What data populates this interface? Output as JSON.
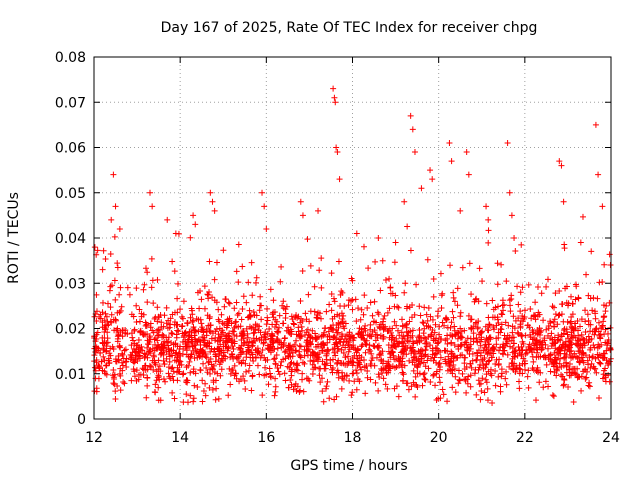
{
  "chart_data": {
    "type": "scatter",
    "title": "Day 167 of 2025, Rate Of TEC Index for receiver chpg",
    "xlabel": "GPS time / hours",
    "ylabel": "ROTI / TECUs",
    "xlim": [
      12,
      24
    ],
    "ylim": [
      0,
      0.08
    ],
    "x_ticks": [
      "12",
      "14",
      "16",
      "18",
      "20",
      "22",
      "24"
    ],
    "y_ticks": [
      "0",
      "0.01",
      "0.02",
      "0.03",
      "0.04",
      "0.05",
      "0.06",
      "0.07",
      "0.08"
    ],
    "grid": true,
    "marker": "+",
    "series_color": "#ff0000",
    "series": [
      {
        "name": "ROTI",
        "x": [
          12.2,
          12.4,
          12.45,
          12.5,
          12.6,
          13.3,
          13.35,
          13.7,
          13.9,
          14.3,
          14.35,
          14.7,
          14.75,
          14.8,
          15.9,
          15.95,
          16.0,
          16.8,
          16.85,
          17.2,
          17.55,
          17.58,
          17.6,
          17.62,
          17.65,
          17.7,
          18.1,
          18.6,
          19.0,
          19.2,
          19.35,
          19.4,
          19.45,
          19.6,
          19.8,
          19.85,
          20.25,
          20.3,
          20.5,
          20.65,
          20.7,
          21.1,
          21.15,
          21.6,
          21.65,
          21.7,
          21.75,
          22.8,
          22.85,
          22.9,
          23.3,
          23.65,
          23.7,
          23.8
        ],
        "y": [
          0.033,
          0.044,
          0.054,
          0.047,
          0.042,
          0.05,
          0.047,
          0.044,
          0.041,
          0.045,
          0.043,
          0.05,
          0.048,
          0.046,
          0.05,
          0.047,
          0.042,
          0.048,
          0.045,
          0.046,
          0.073,
          0.071,
          0.07,
          0.06,
          0.059,
          0.053,
          0.041,
          0.04,
          0.039,
          0.048,
          0.067,
          0.064,
          0.059,
          0.051,
          0.055,
          0.053,
          0.061,
          0.057,
          0.046,
          0.059,
          0.054,
          0.047,
          0.044,
          0.061,
          0.05,
          0.045,
          0.04,
          0.057,
          0.056,
          0.048,
          0.039,
          0.065,
          0.054,
          0.047
        ],
        "baseline_band": {
          "center": 0.015,
          "spread_low": 0.007,
          "spread_high": 0.03
        }
      }
    ]
  }
}
